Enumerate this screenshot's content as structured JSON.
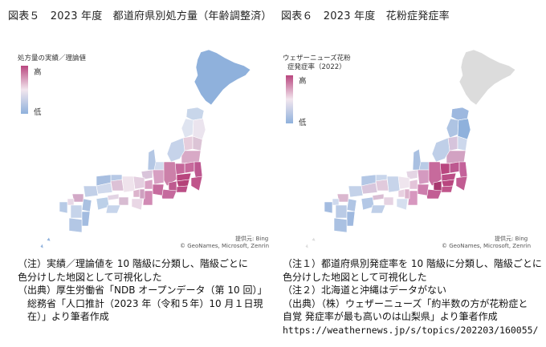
{
  "figure5": {
    "title": "図表５　2023 年度　都道府県別処方量（年齢調整済）",
    "legend": {
      "title": "処方量の実績／理論値",
      "high": "高",
      "low": "低",
      "high_color": "#b9467f",
      "low_color": "#8fb1dc"
    },
    "credit_source": "提供元: Bing",
    "credit_attribution": "© GeoNames, Microsoft, Zenrin",
    "notes": [
      "（注）実績／理論値を 10 階級に分類し、階級ごとに",
      "色分けした地図として可視化した",
      "（出典）厚生労働省「NDB オープンデータ（第 10 回）」",
      "総務省「人口推計（2023 年（令和５年）10 月１日現",
      "在）」より筆者作成"
    ]
  },
  "figure6": {
    "title": "図表６　2023 年度　花粉症発症率",
    "legend": {
      "title_line1": "ウェザーニューズ花粉",
      "title_line2": "症発症率（2022）",
      "high": "高",
      "low": "低",
      "high_color": "#b9467f",
      "low_color": "#8fb1dc"
    },
    "credit_source": "提供元: Bing",
    "credit_attribution": "© GeoNames, Microsoft, Zenrin",
    "notes": [
      "（注１）都道府県別発症率を 10 階級に分類し、階級ごとに",
      "色分けした地図として可視化した",
      "（注２）北海道と沖縄はデータがない",
      "（出典）（株）ウェザーニューズ「約半数の方が花粉症と",
      "自覚 発症率が最も高いのは山梨県」より筆者作成",
      "https://weathernews.jp/s/topics/202203/160055/"
    ]
  },
  "colors": {
    "high": "#b9467f",
    "mid": "#f2e6ee",
    "low": "#8fb1dc",
    "no_data": "#dcdcdc"
  }
}
